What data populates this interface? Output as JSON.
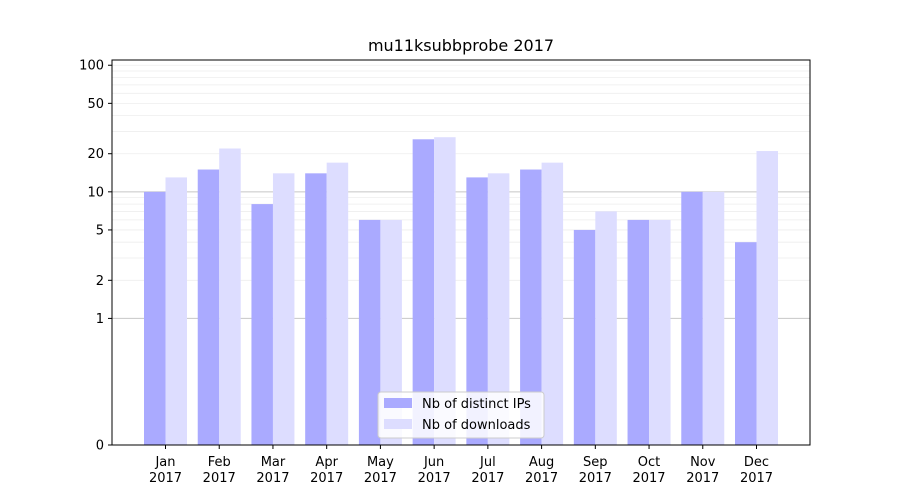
{
  "chart_data": {
    "type": "bar",
    "title": "mu11ksubbprobe 2017",
    "xlabel": "",
    "ylabel": "",
    "y_scale": "symlog",
    "ylim": [
      0,
      110
    ],
    "y_ticks": [
      0,
      1,
      2,
      5,
      10,
      20,
      50,
      100
    ],
    "grid": true,
    "legend_position": "bottom-center",
    "categories": [
      [
        "Jan",
        "2017"
      ],
      [
        "Feb",
        "2017"
      ],
      [
        "Mar",
        "2017"
      ],
      [
        "Apr",
        "2017"
      ],
      [
        "May",
        "2017"
      ],
      [
        "Jun",
        "2017"
      ],
      [
        "Jul",
        "2017"
      ],
      [
        "Aug",
        "2017"
      ],
      [
        "Sep",
        "2017"
      ],
      [
        "Oct",
        "2017"
      ],
      [
        "Nov",
        "2017"
      ],
      [
        "Dec",
        "2017"
      ]
    ],
    "series": [
      {
        "name": "Nb of distinct IPs",
        "color": "#aaaaff",
        "values": [
          10,
          15,
          8,
          14,
          6,
          26,
          13,
          15,
          5,
          6,
          10,
          4
        ]
      },
      {
        "name": "Nb of downloads",
        "color": "#ddddff",
        "values": [
          13,
          22,
          14,
          17,
          6,
          27,
          14,
          17,
          7,
          6,
          10,
          21
        ]
      }
    ]
  }
}
